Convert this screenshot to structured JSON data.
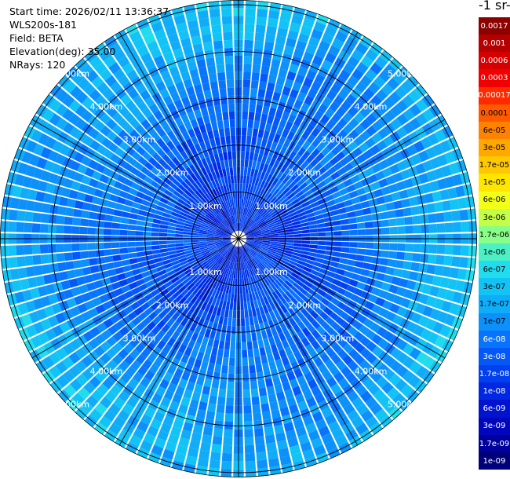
{
  "info": {
    "start_time": "Start time: 2026/02/11 13:36:37",
    "instrument": "WLS200s-181",
    "field": "Field: BETA",
    "elevation": "Elevation(deg): 35.00",
    "nrays": "NRays: 120"
  },
  "chart_data": {
    "type": "heatmap",
    "projection": "polar-ppi",
    "field": "BETA",
    "colorbar_unit_fragment": "-1 sr-",
    "nrays": 120,
    "range_ring_labels": [
      "1.00km",
      "2.00km",
      "3.00km",
      "4.00km",
      "5.00km"
    ],
    "range_rings_km": [
      1,
      2,
      3,
      4,
      5
    ],
    "max_range_km": 5.1,
    "colorbar": {
      "scale": "log",
      "labels": [
        "0.0017",
        "0.001",
        "0.0006",
        "0.0003",
        "0.00017",
        "0.0001",
        "6e-05",
        "3e-05",
        "1.7e-05",
        "1e-05",
        "6e-06",
        "3e-06",
        "1.7e-06",
        "1e-06",
        "6e-07",
        "3e-07",
        "1.7e-07",
        "1e-07",
        "6e-08",
        "3e-08",
        "1.7e-08",
        "1e-08",
        "6e-09",
        "3e-09",
        "1.7e-09",
        "1e-09"
      ],
      "colors": [
        "#8c0000",
        "#b40000",
        "#d60000",
        "#f00000",
        "#ff2a00",
        "#ff5a00",
        "#ff8200",
        "#ffa800",
        "#ffc800",
        "#ffe600",
        "#f2ff18",
        "#c4ff48",
        "#88ff88",
        "#4cf0c4",
        "#20dcec",
        "#12c4f6",
        "#10acf8",
        "#0c90fa",
        "#0874fc",
        "#0458f8",
        "#0040ee",
        "#0028e2",
        "#0014d0",
        "#0006bc",
        "#00009c",
        "#00007a"
      ]
    },
    "value_distribution": "lowest values (about 1e-08 to 3e-08) near the center, rising to about 1.7e-07 to 1e-06 at the outer ranges",
    "grid": true
  }
}
